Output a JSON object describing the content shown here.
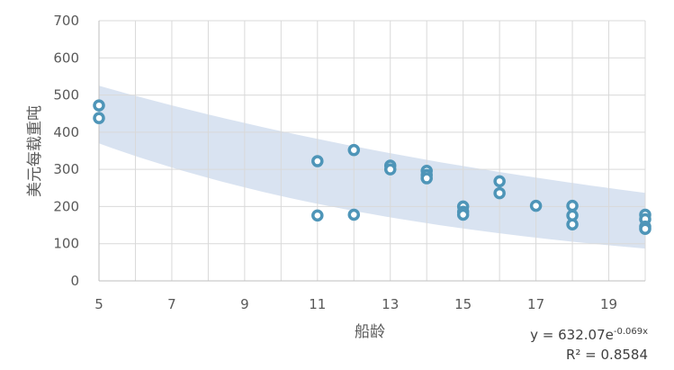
{
  "chart_data": {
    "type": "scatter",
    "xlabel": "船龄",
    "ylabel": "美元每载重吨",
    "xlim": [
      5,
      20
    ],
    "ylim": [
      0,
      700
    ],
    "x_ticks": [
      "5",
      "7",
      "9",
      "11",
      "13",
      "15",
      "17",
      "19"
    ],
    "y_ticks": [
      "0",
      "100",
      "200",
      "300",
      "400",
      "500",
      "600",
      "700"
    ],
    "x_tick_values": [
      5,
      7,
      9,
      11,
      13,
      15,
      17,
      19
    ],
    "y_tick_values": [
      0,
      100,
      200,
      300,
      400,
      500,
      600,
      700
    ],
    "grid": "vertical and horizontal",
    "points": [
      {
        "x": 5,
        "y": 472
      },
      {
        "x": 5,
        "y": 438
      },
      {
        "x": 11,
        "y": 322
      },
      {
        "x": 11,
        "y": 176
      },
      {
        "x": 12,
        "y": 352
      },
      {
        "x": 12,
        "y": 178
      },
      {
        "x": 13,
        "y": 310
      },
      {
        "x": 13,
        "y": 300
      },
      {
        "x": 14,
        "y": 296
      },
      {
        "x": 14,
        "y": 285
      },
      {
        "x": 14,
        "y": 276
      },
      {
        "x": 15,
        "y": 200
      },
      {
        "x": 15,
        "y": 186
      },
      {
        "x": 15,
        "y": 178
      },
      {
        "x": 16,
        "y": 268
      },
      {
        "x": 16,
        "y": 236
      },
      {
        "x": 17,
        "y": 202
      },
      {
        "x": 18,
        "y": 202
      },
      {
        "x": 18,
        "y": 176
      },
      {
        "x": 18,
        "y": 152
      },
      {
        "x": 20,
        "y": 178
      },
      {
        "x": 20,
        "y": 166
      },
      {
        "x": 20,
        "y": 146
      },
      {
        "x": 20,
        "y": 140
      }
    ],
    "band": {
      "upper": [
        [
          5,
          525
        ],
        [
          20,
          237
        ]
      ],
      "lower": [
        [
          5,
          370
        ],
        [
          20,
          87
        ]
      ]
    },
    "trendline": {
      "equation_prefix": "y = 632.07e",
      "equation_exponent": "-0.069x",
      "r_squared": "R² = 0.8584"
    },
    "colors": {
      "marker": "#4e95b8",
      "band": "#d9e3f1",
      "grid": "#d9d9d9",
      "axis": "#bfbfbf"
    }
  }
}
